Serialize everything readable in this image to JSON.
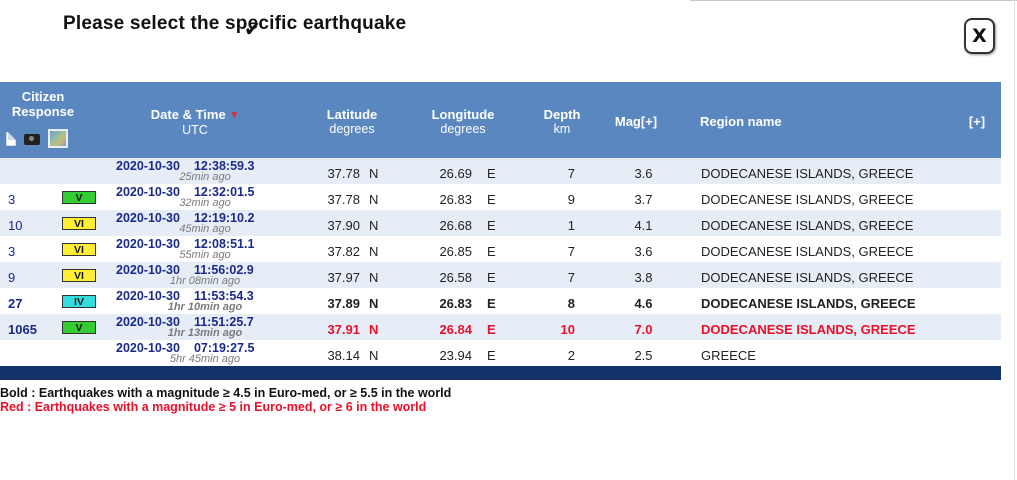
{
  "dialog": {
    "title": "Please select the specific earthquake",
    "close_label": "X",
    "cursor_glyph": "✔"
  },
  "colors": {
    "header_bg": "#5a87c0",
    "row_alt_bg": "#e6edf6",
    "footer_bar": "#133269",
    "red_text": "#e8102a",
    "date_text": "#1a2a8a",
    "badge_V": "#33cc33",
    "badge_VI": "#ffee33",
    "badge_IV": "#33dddd"
  },
  "header": {
    "citizen_response": "Citizen Response",
    "datetime": "Date & Time",
    "datetime_sub": "UTC",
    "sort_glyph": "▼",
    "latitude": "Latitude",
    "latitude_sub": "degrees",
    "longitude": "Longitude",
    "longitude_sub": "degrees",
    "depth": "Depth",
    "depth_sub": "km",
    "mag": "Mag[+]",
    "region": "Region name",
    "expand": "[+]",
    "icons": [
      "document-icon",
      "camera-icon",
      "map-icon"
    ]
  },
  "rows": [
    {
      "response": "",
      "intensity": "",
      "date": "2020-10-30",
      "time": "12:38:59.3",
      "ago": "25min ago",
      "lat": "37.78",
      "lat_dir": "N",
      "lon": "26.69",
      "lon_dir": "E",
      "depth": "7",
      "mag": "3.6",
      "region": "DODECANESE ISLANDS, GREECE",
      "style": "normal"
    },
    {
      "response": "3",
      "intensity": "V",
      "date": "2020-10-30",
      "time": "12:32:01.5",
      "ago": "32min ago",
      "lat": "37.78",
      "lat_dir": "N",
      "lon": "26.83",
      "lon_dir": "E",
      "depth": "9",
      "mag": "3.7",
      "region": "DODECANESE ISLANDS, GREECE",
      "style": "normal"
    },
    {
      "response": "10",
      "intensity": "VI",
      "date": "2020-10-30",
      "time": "12:19:10.2",
      "ago": "45min ago",
      "lat": "37.90",
      "lat_dir": "N",
      "lon": "26.68",
      "lon_dir": "E",
      "depth": "1",
      "mag": "4.1",
      "region": "DODECANESE ISLANDS, GREECE",
      "style": "normal"
    },
    {
      "response": "3",
      "intensity": "VI",
      "date": "2020-10-30",
      "time": "12:08:51.1",
      "ago": "55min ago",
      "lat": "37.82",
      "lat_dir": "N",
      "lon": "26.85",
      "lon_dir": "E",
      "depth": "7",
      "mag": "3.6",
      "region": "DODECANESE ISLANDS, GREECE",
      "style": "normal"
    },
    {
      "response": "9",
      "intensity": "VI",
      "date": "2020-10-30",
      "time": "11:56:02.9",
      "ago": "1hr 08min ago",
      "lat": "37.97",
      "lat_dir": "N",
      "lon": "26.58",
      "lon_dir": "E",
      "depth": "7",
      "mag": "3.8",
      "region": "DODECANESE ISLANDS, GREECE",
      "style": "normal"
    },
    {
      "response": "27",
      "intensity": "IV",
      "date": "2020-10-30",
      "time": "11:53:54.3",
      "ago": "1hr 10min ago",
      "lat": "37.89",
      "lat_dir": "N",
      "lon": "26.83",
      "lon_dir": "E",
      "depth": "8",
      "mag": "4.6",
      "region": "DODECANESE ISLANDS, GREECE",
      "style": "bold"
    },
    {
      "response": "1065",
      "intensity": "V",
      "date": "2020-10-30",
      "time": "11:51:25.7",
      "ago": "1hr 13min ago",
      "lat": "37.91",
      "lat_dir": "N",
      "lon": "26.84",
      "lon_dir": "E",
      "depth": "10",
      "mag": "7.0",
      "region": "DODECANESE ISLANDS, GREECE",
      "style": "red"
    },
    {
      "response": "",
      "intensity": "",
      "date": "2020-10-30",
      "time": "07:19:27.5",
      "ago": "5hr 45min ago",
      "lat": "38.14",
      "lat_dir": "N",
      "lon": "23.94",
      "lon_dir": "E",
      "depth": "2",
      "mag": "2.5",
      "region": "GREECE",
      "style": "normal"
    }
  ],
  "legend": {
    "bold_line": "Bold : Earthquakes with a magnitude ≥ 4.5 in Euro-med, or ≥ 5.5 in the world",
    "red_line": "Red : Earthquakes with a magnitude ≥ 5 in Euro-med, or ≥ 6 in the world"
  }
}
